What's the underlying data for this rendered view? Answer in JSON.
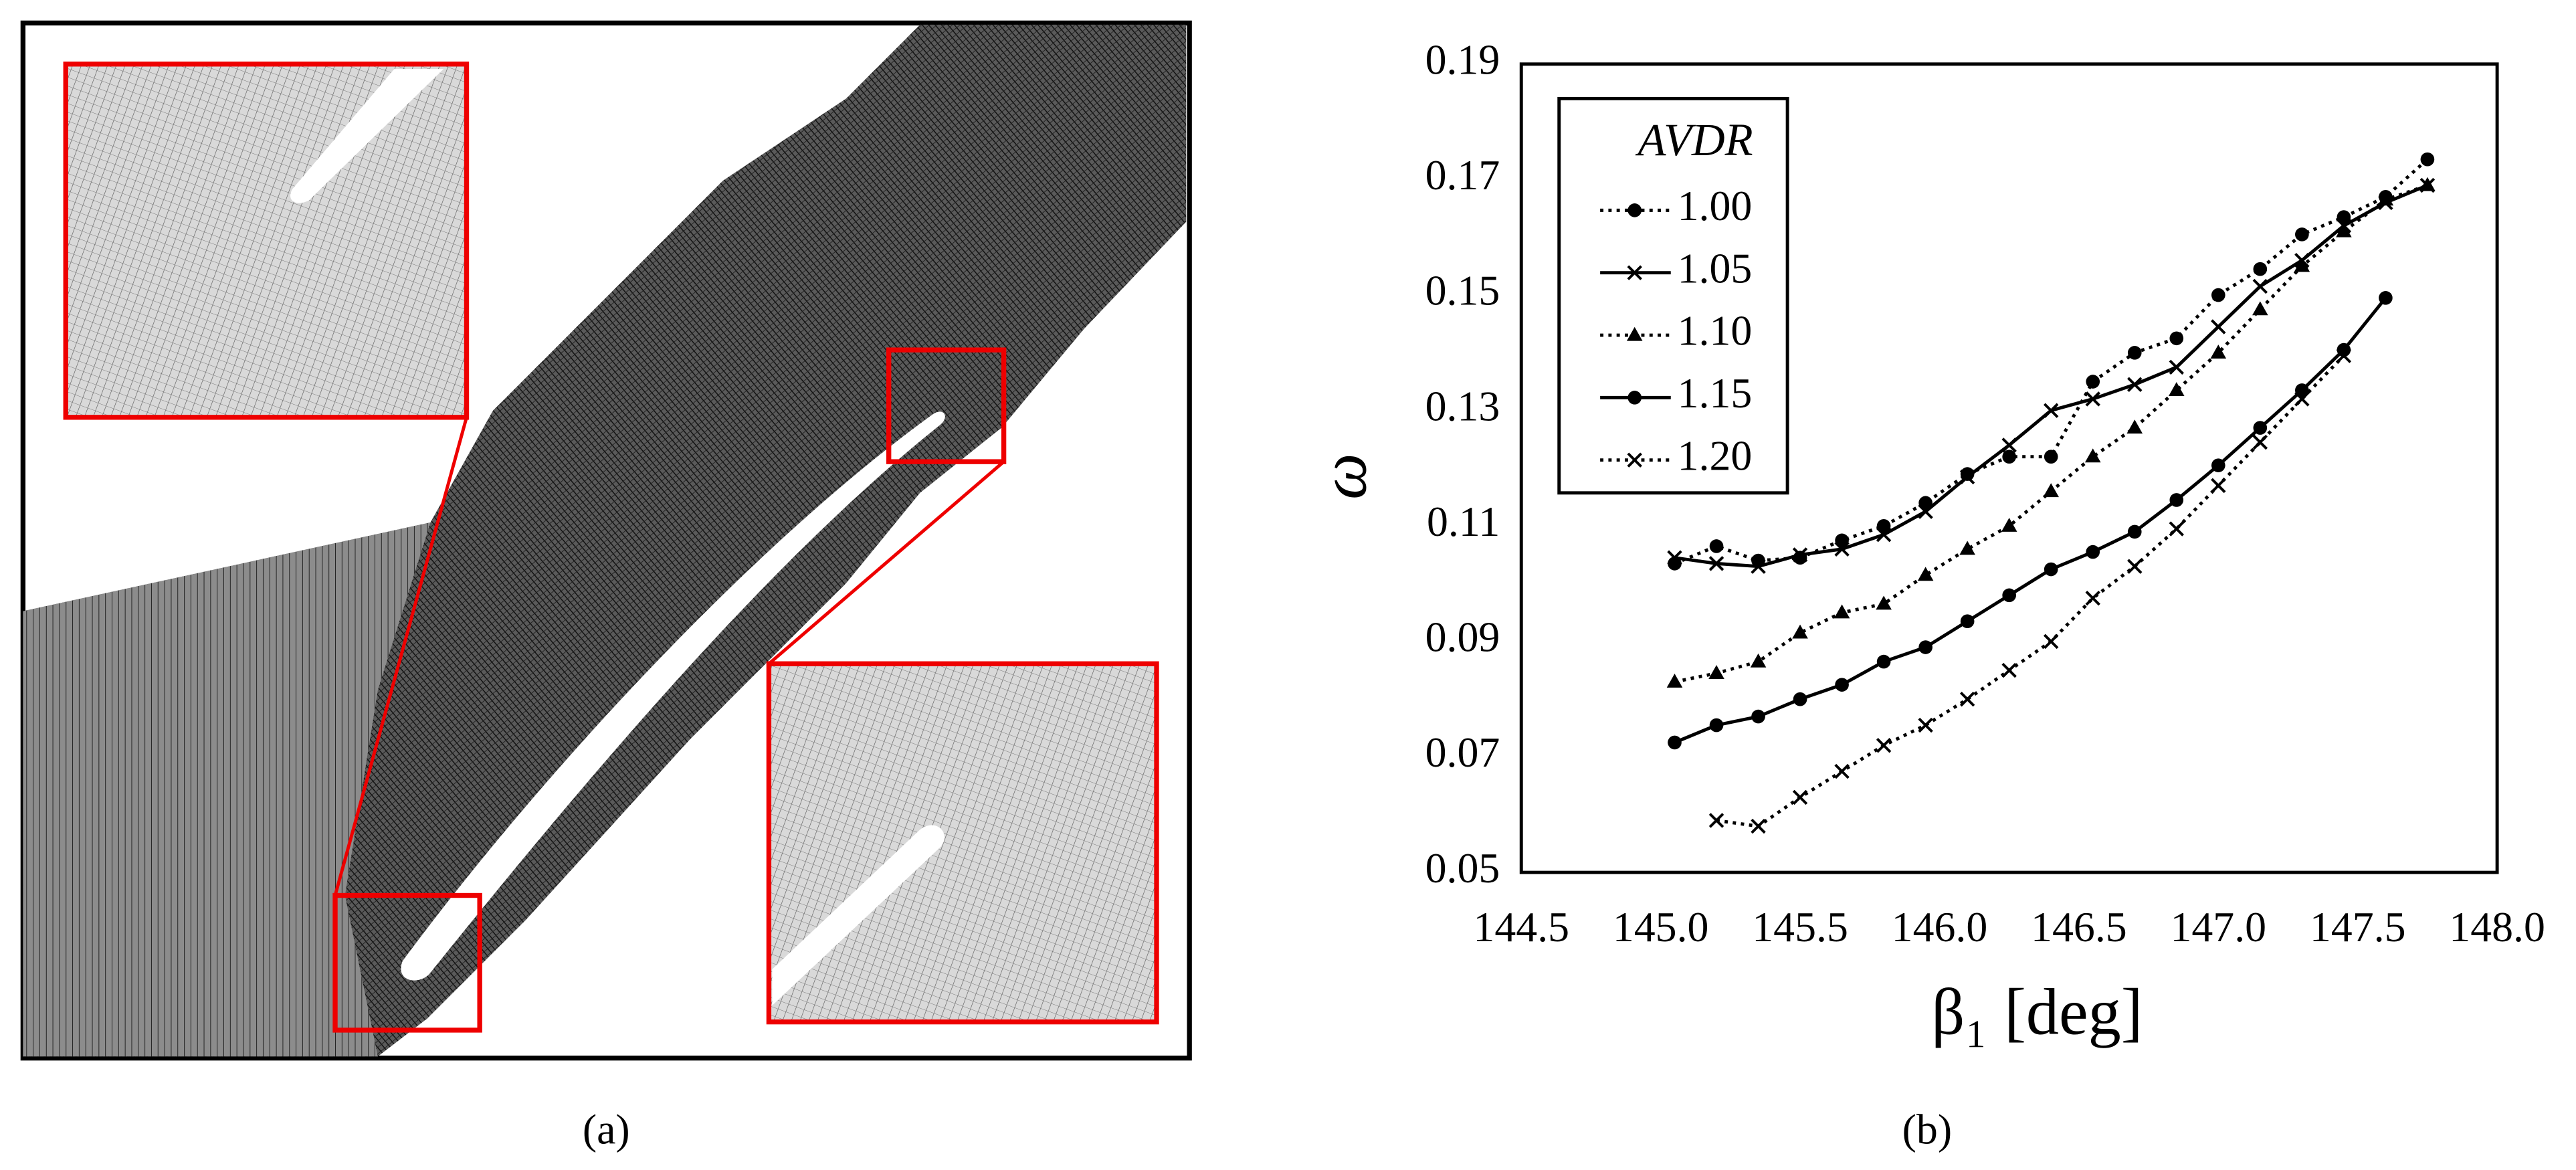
{
  "panels": {
    "a": {
      "label": "(a)"
    },
    "b": {
      "label": "(b)"
    }
  },
  "chart_data": {
    "type": "line",
    "x_label": "β₁ [deg]",
    "y_label": "ω",
    "xlim": [
      144.5,
      148.0
    ],
    "xticks": [
      144.5,
      {
        "value": 145,
        "label": "145.0"
      },
      145.5,
      {
        "value": 146,
        "label": "146.0"
      },
      146.5,
      {
        "value": 147,
        "label": "147.0"
      },
      147.5,
      {
        "value": 148,
        "label": "148.0"
      }
    ],
    "ylim": [
      0.05,
      0.19
    ],
    "yticks": [
      0.05,
      0.07,
      0.09,
      0.11,
      0.13,
      0.15,
      0.17,
      0.19
    ],
    "grid": false,
    "legend_title": "AVDR",
    "legend_loc": "upper left",
    "series": [
      {
        "name": "1.00",
        "color": "#000000",
        "line_style": "dotted",
        "marker": "circle",
        "x": [
          145.05,
          145.2,
          145.35,
          145.5,
          145.65,
          145.8,
          145.95,
          146.1,
          146.25,
          146.4,
          146.55,
          146.7,
          146.85,
          147.0,
          147.15,
          147.3,
          147.45,
          147.6,
          147.75
        ],
        "values": [
          0.1035,
          0.1065,
          0.104,
          0.1045,
          0.1075,
          0.11,
          0.114,
          0.119,
          0.122,
          0.122,
          0.135,
          0.14,
          0.1425,
          0.15,
          0.1545,
          0.1605,
          0.1635,
          0.167,
          0.1735
        ]
      },
      {
        "name": "1.05",
        "color": "#000000",
        "line_style": "solid",
        "marker": "x",
        "x": [
          145.05,
          145.2,
          145.35,
          145.5,
          145.65,
          145.8,
          145.95,
          146.1,
          146.25,
          146.4,
          146.55,
          146.7,
          146.85,
          147.0,
          147.15,
          147.3,
          147.45,
          147.6,
          147.75
        ],
        "values": [
          0.1045,
          0.1035,
          0.103,
          0.105,
          0.106,
          0.1085,
          0.1125,
          0.1185,
          0.124,
          0.13,
          0.132,
          0.1345,
          0.1375,
          0.1445,
          0.1515,
          0.156,
          0.162,
          0.166,
          0.169
        ]
      },
      {
        "name": "1.10",
        "color": "#000000",
        "line_style": "dotted",
        "marker": "triangle",
        "x": [
          145.05,
          145.2,
          145.35,
          145.5,
          145.65,
          145.8,
          145.95,
          146.1,
          146.25,
          146.4,
          146.55,
          146.7,
          146.85,
          147.0,
          147.15,
          147.3,
          147.45,
          147.6,
          147.75
        ],
        "values": [
          0.083,
          0.0845,
          0.0865,
          0.0915,
          0.095,
          0.0965,
          0.1015,
          0.106,
          0.11,
          0.116,
          0.122,
          0.127,
          0.1335,
          0.14,
          0.1475,
          0.155,
          0.161,
          0.1665,
          0.169
        ]
      },
      {
        "name": "1.15",
        "color": "#000000",
        "line_style": "solid",
        "marker": "circle",
        "x": [
          145.05,
          145.2,
          145.35,
          145.5,
          145.65,
          145.8,
          145.95,
          146.1,
          146.25,
          146.4,
          146.55,
          146.7,
          146.85,
          147.0,
          147.15,
          147.3,
          147.45,
          147.6
        ],
        "values": [
          0.0725,
          0.0755,
          0.077,
          0.08,
          0.0825,
          0.0865,
          0.089,
          0.0935,
          0.098,
          0.1025,
          0.1055,
          0.109,
          0.1145,
          0.1205,
          0.127,
          0.1335,
          0.1405,
          0.1495
        ]
      },
      {
        "name": "1.20",
        "color": "#000000",
        "line_style": "dotted",
        "marker": "x",
        "x": [
          145.2,
          145.35,
          145.5,
          145.65,
          145.8,
          145.95,
          146.1,
          146.25,
          146.4,
          146.55,
          146.7,
          146.85,
          147.0,
          147.15,
          147.3,
          147.45
        ],
        "values": [
          0.059,
          0.058,
          0.063,
          0.0675,
          0.072,
          0.0755,
          0.08,
          0.085,
          0.09,
          0.0975,
          0.103,
          0.1095,
          0.117,
          0.1245,
          0.132,
          0.1395
        ]
      }
    ]
  }
}
